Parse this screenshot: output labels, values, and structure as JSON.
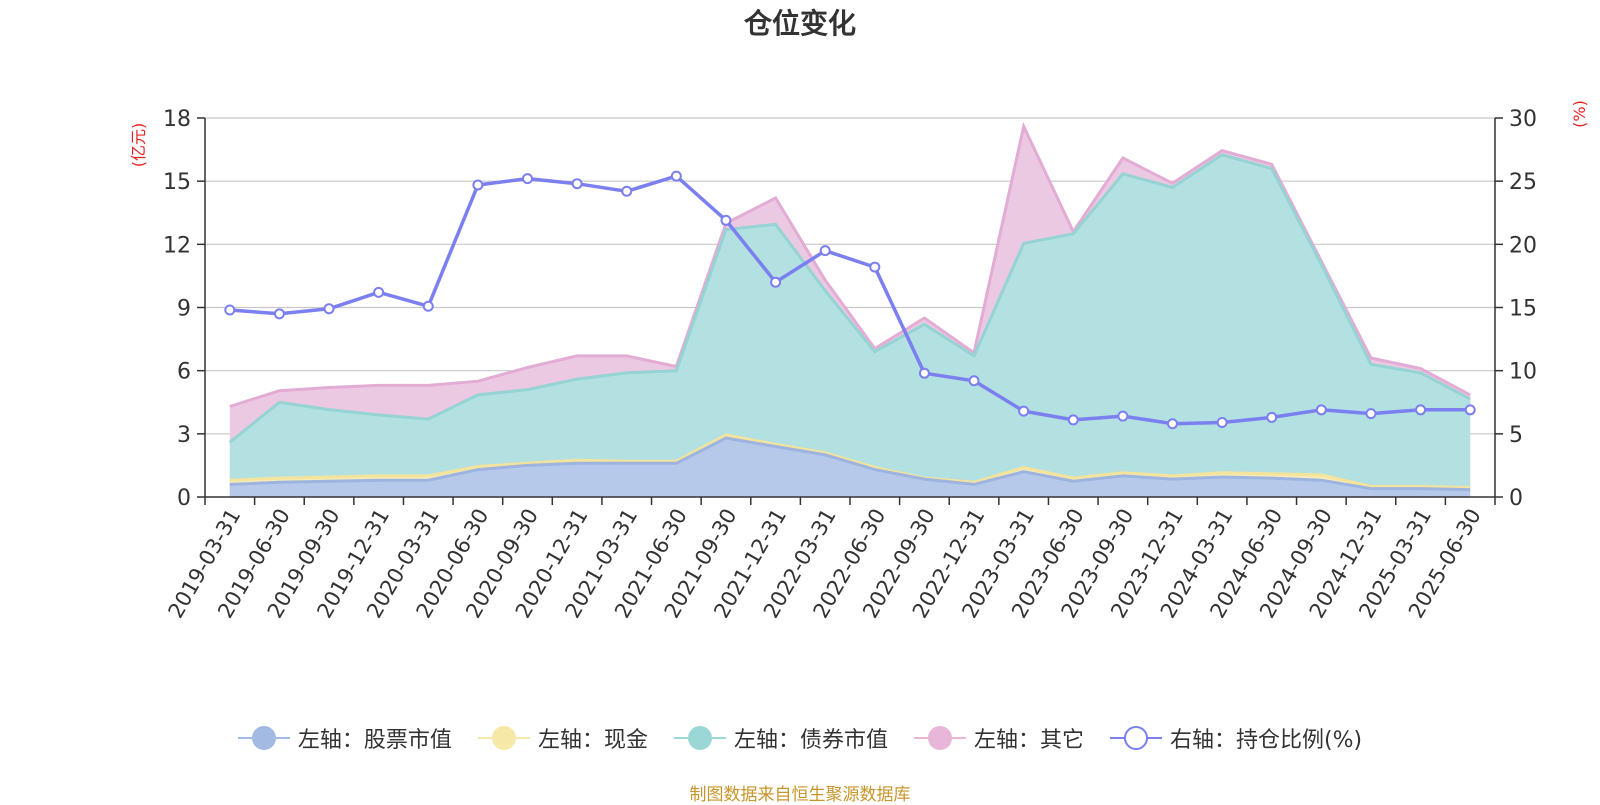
{
  "title": "仓位变化",
  "source_text": "制图数据来自恒生聚源数据库",
  "left_axis_unit": "(亿元)",
  "right_axis_unit": "(%)",
  "legend": [
    {
      "key": "stock",
      "label": "左轴：股票市值",
      "color": "#a3bbe2",
      "style": "area"
    },
    {
      "key": "cash",
      "label": "左轴：现金",
      "color": "#f6e9a8",
      "style": "area"
    },
    {
      "key": "bond",
      "label": "左轴：债券市值",
      "color": "#9bd7d7",
      "style": "area"
    },
    {
      "key": "other",
      "label": "左轴：其它",
      "color": "#e8b6d8",
      "style": "area"
    },
    {
      "key": "ratio",
      "label": "右轴：持仓比例(%)",
      "color": "#7b7ff0",
      "style": "line"
    }
  ],
  "chart_data": {
    "type": "area",
    "categories": [
      "2019-03-31",
      "2019-06-30",
      "2019-09-30",
      "2019-12-31",
      "2020-03-31",
      "2020-06-30",
      "2020-09-30",
      "2020-12-31",
      "2021-03-31",
      "2021-06-30",
      "2021-09-30",
      "2021-12-31",
      "2022-03-31",
      "2022-06-30",
      "2022-09-30",
      "2022-12-31",
      "2023-03-31",
      "2023-06-30",
      "2023-09-30",
      "2023-12-31",
      "2024-03-31",
      "2024-06-30",
      "2024-09-30",
      "2024-12-31",
      "2025-03-31",
      "2025-06-30"
    ],
    "left_axis": {
      "min": 0,
      "max": 18,
      "ticks": [
        0,
        3,
        6,
        9,
        12,
        15,
        18
      ]
    },
    "right_axis": {
      "min": 0,
      "max": 30,
      "ticks": [
        0,
        5,
        10,
        15,
        20,
        25,
        30
      ]
    },
    "stacked_series_cumulative": true,
    "series": [
      {
        "name": "左轴：股票市值",
        "axis": "left",
        "color": "#b6c9ea",
        "line_color": "#9db4e0",
        "values": [
          0.6,
          0.7,
          0.75,
          0.8,
          0.8,
          1.3,
          1.5,
          1.6,
          1.6,
          1.6,
          2.8,
          2.4,
          2.0,
          1.3,
          0.85,
          0.6,
          1.2,
          0.75,
          1.0,
          0.85,
          0.95,
          0.9,
          0.8,
          0.4,
          0.4,
          0.35
        ]
      },
      {
        "name": "左轴：现金",
        "axis": "left",
        "color": "#f7ecb5",
        "line_color": "#f4e39c",
        "values": [
          0.8,
          0.9,
          0.95,
          1.0,
          1.0,
          1.45,
          1.6,
          1.75,
          1.7,
          1.7,
          2.95,
          2.5,
          2.1,
          1.4,
          0.9,
          0.7,
          1.4,
          0.9,
          1.15,
          1.0,
          1.15,
          1.1,
          1.05,
          0.5,
          0.5,
          0.45
        ]
      },
      {
        "name": "左轴：债券市值",
        "axis": "left",
        "color": "#b3e0e0",
        "line_color": "#96d3d3",
        "values": [
          2.6,
          4.5,
          4.15,
          3.9,
          3.7,
          4.85,
          5.1,
          5.6,
          5.9,
          6.0,
          12.7,
          12.95,
          9.8,
          6.9,
          8.2,
          6.7,
          12.05,
          12.5,
          15.35,
          14.7,
          16.25,
          15.6,
          11.05,
          6.3,
          5.9,
          4.65
        ]
      },
      {
        "name": "左轴：其它",
        "axis": "left",
        "color": "#ecc9e3",
        "line_color": "#e2acd5",
        "values": [
          4.3,
          5.05,
          5.2,
          5.3,
          5.3,
          5.5,
          6.15,
          6.7,
          6.7,
          6.2,
          13.0,
          14.2,
          10.3,
          7.05,
          8.5,
          6.85,
          17.6,
          12.6,
          16.1,
          14.9,
          16.45,
          15.8,
          11.2,
          6.6,
          6.1,
          4.85
        ]
      },
      {
        "name": "右轴：持仓比例(%)",
        "axis": "right",
        "color": "#7b7ff0",
        "values": [
          14.8,
          14.5,
          14.9,
          16.2,
          15.1,
          24.7,
          25.2,
          24.8,
          24.2,
          25.4,
          21.9,
          17.0,
          19.5,
          18.2,
          9.8,
          9.2,
          6.8,
          6.1,
          6.4,
          5.8,
          5.9,
          6.3,
          6.9,
          6.6,
          6.9,
          6.9
        ]
      }
    ],
    "grid": true,
    "legend_position": "bottom"
  }
}
